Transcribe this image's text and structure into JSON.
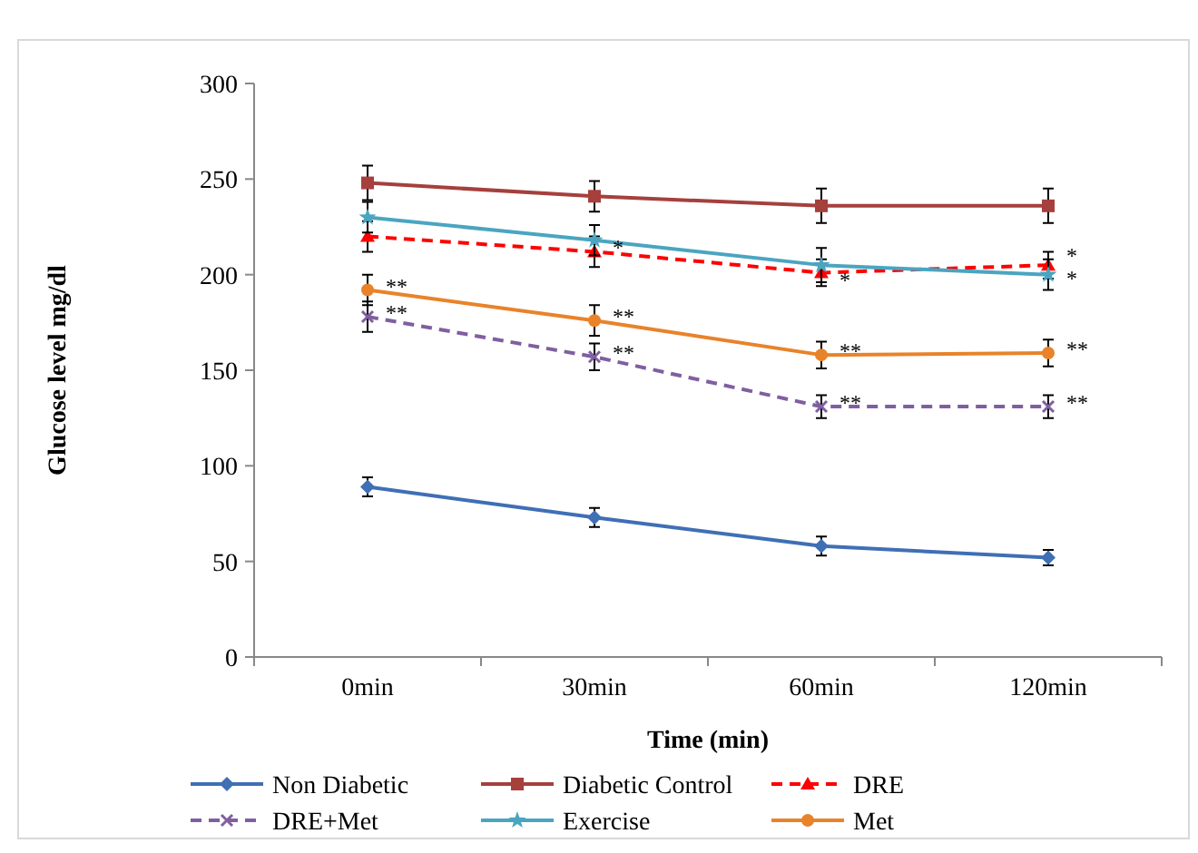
{
  "chart_data": {
    "type": "line",
    "xlabel": "Time (min)",
    "ylabel": "Glucose level mg/dl",
    "categories": [
      "0min",
      "30min",
      "60min",
      "120min"
    ],
    "ylim": [
      0,
      300
    ],
    "yticks": [
      0,
      50,
      100,
      150,
      200,
      250,
      300
    ],
    "grid": false,
    "legend": "bottom",
    "series": [
      {
        "name": "Non Diabetic",
        "color": "#3f6fb5",
        "values": [
          89,
          73,
          58,
          52
        ],
        "errors": [
          5,
          5,
          5,
          4
        ],
        "marker": "diamond",
        "line_style": "solid"
      },
      {
        "name": "Diabetic Control",
        "color": "#a5403d",
        "values": [
          248,
          241,
          236,
          236
        ],
        "errors": [
          9,
          8,
          9,
          9
        ],
        "marker": "square",
        "line_style": "solid"
      },
      {
        "name": "DRE",
        "color": "#ff0000",
        "values": [
          220,
          212,
          201,
          205
        ],
        "errors": [
          8,
          8,
          7,
          7
        ],
        "marker": "triangle",
        "line_style": "dashed"
      },
      {
        "name": "DRE+Met",
        "color": "#7f5fa0",
        "values": [
          178,
          157,
          131,
          131
        ],
        "errors": [
          8,
          7,
          6,
          6
        ],
        "marker": "cross",
        "line_style": "dashed"
      },
      {
        "name": "Exercise",
        "color": "#4aa5c0",
        "values": [
          230,
          218,
          205,
          200
        ],
        "errors": [
          8,
          8,
          9,
          8
        ],
        "marker": "star",
        "line_style": "solid"
      },
      {
        "name": "Met",
        "color": "#e8832a",
        "values": [
          192,
          176,
          158,
          159
        ],
        "errors": [
          8,
          8,
          7,
          7
        ],
        "marker": "circle",
        "line_style": "solid"
      }
    ],
    "annotations": [
      {
        "text": "**",
        "x": "0min",
        "y": 192
      },
      {
        "text": "**",
        "x": "30min",
        "y": 176
      },
      {
        "text": "**",
        "x": "60min",
        "y": 158
      },
      {
        "text": "**",
        "x": "120min",
        "y": 159
      },
      {
        "text": "**",
        "x": "0min",
        "y": 178
      },
      {
        "text": "**",
        "x": "30min",
        "y": 157
      },
      {
        "text": "**",
        "x": "60min",
        "y": 131
      },
      {
        "text": "**",
        "x": "120min",
        "y": 131
      },
      {
        "text": "*",
        "x": "30min",
        "y": 212
      },
      {
        "text": "*",
        "x": "60min",
        "y": 195
      },
      {
        "text": "*",
        "x": "120min",
        "y": 208
      },
      {
        "text": "*",
        "x": "120min",
        "y": 196
      }
    ]
  }
}
